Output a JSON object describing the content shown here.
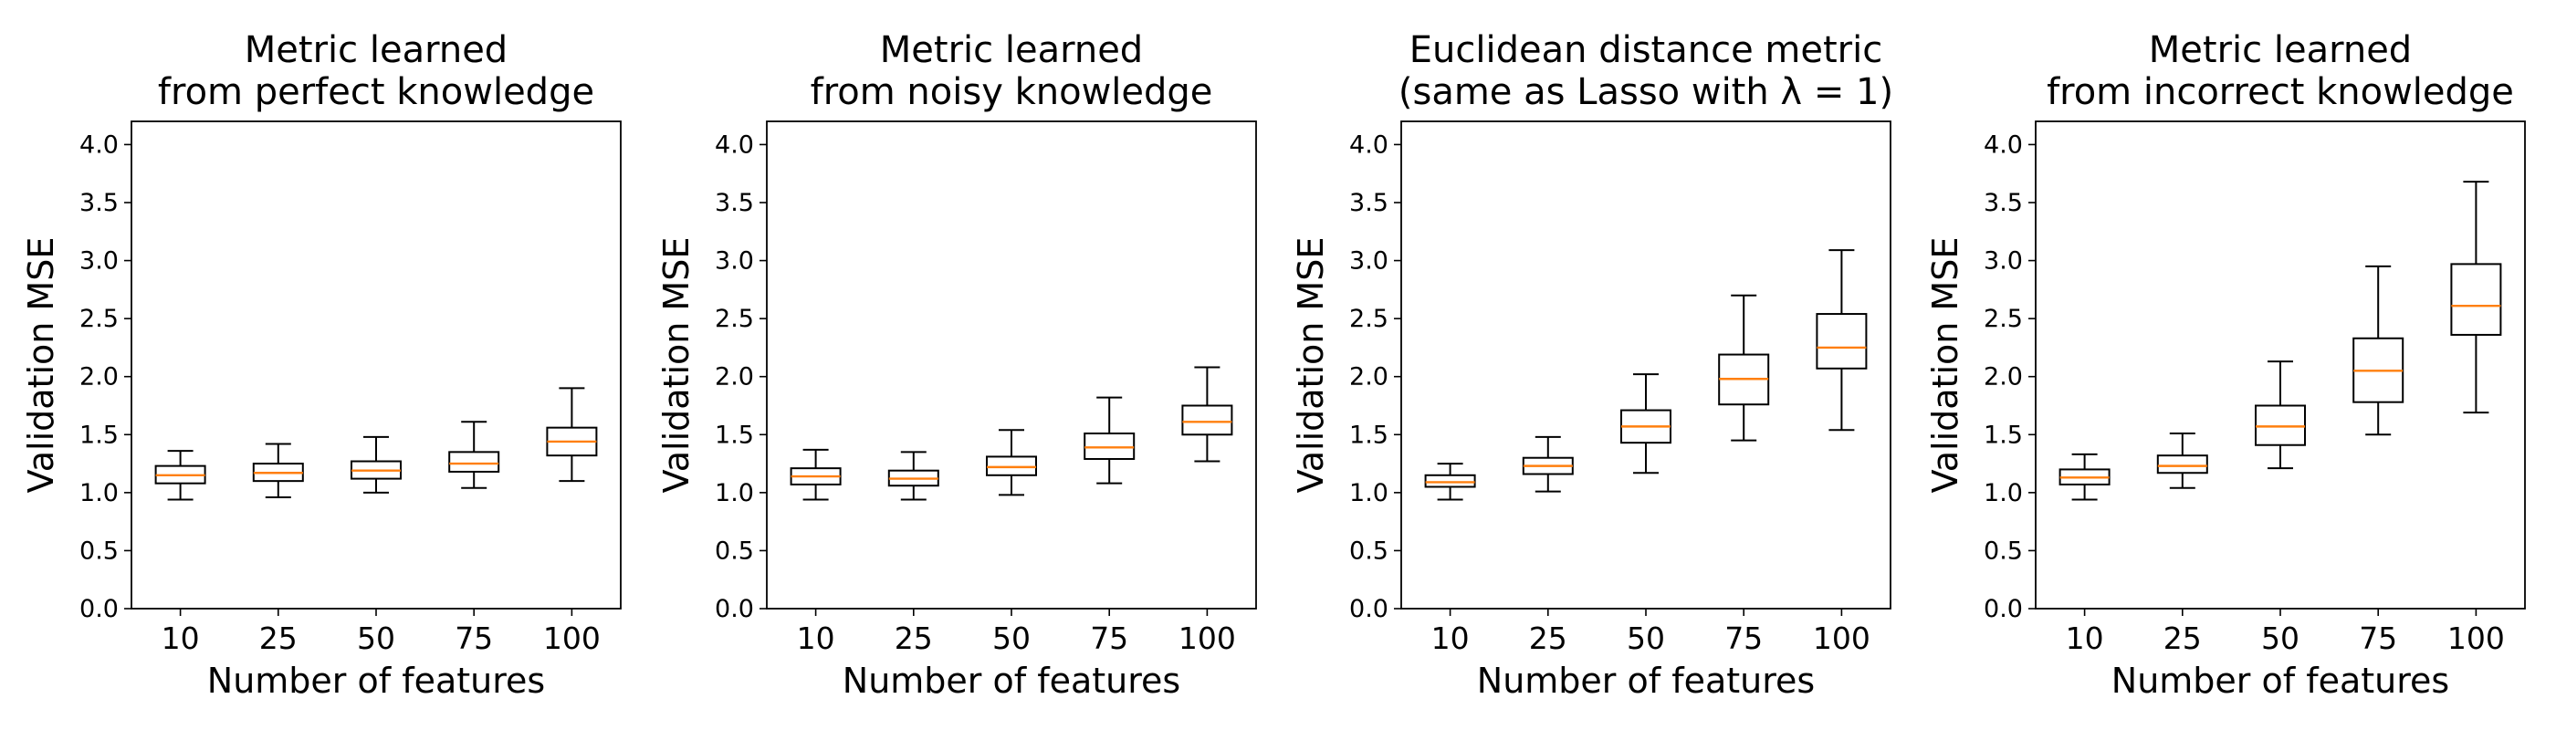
{
  "figure": {
    "style": {
      "box_edge_color": "#000000",
      "median_color": "#ff7f0e",
      "background": "#ffffff"
    }
  },
  "chart_data": [
    {
      "type": "boxplot",
      "title_lines": [
        "Metric learned",
        "from perfect knowledge"
      ],
      "xlabel": "Number of features",
      "ylabel": "Validation MSE",
      "categories": [
        "10",
        "25",
        "50",
        "75",
        "100"
      ],
      "ylim": [
        0,
        4.2
      ],
      "yticks": [
        0.0,
        0.5,
        1.0,
        1.5,
        2.0,
        2.5,
        3.0,
        3.5,
        4.0
      ],
      "ytick_labels": [
        "0.0",
        "0.5",
        "1.0",
        "1.5",
        "2.0",
        "2.5",
        "3.0",
        "3.5",
        "4.0"
      ],
      "grid": false,
      "boxes": [
        {
          "whislo": 0.94,
          "q1": 1.08,
          "med": 1.15,
          "q3": 1.23,
          "whishi": 1.36
        },
        {
          "whislo": 0.96,
          "q1": 1.1,
          "med": 1.17,
          "q3": 1.25,
          "whishi": 1.42
        },
        {
          "whislo": 1.0,
          "q1": 1.12,
          "med": 1.19,
          "q3": 1.27,
          "whishi": 1.48
        },
        {
          "whislo": 1.04,
          "q1": 1.18,
          "med": 1.25,
          "q3": 1.35,
          "whishi": 1.61
        },
        {
          "whislo": 1.1,
          "q1": 1.32,
          "med": 1.44,
          "q3": 1.56,
          "whishi": 1.9
        }
      ]
    },
    {
      "type": "boxplot",
      "title_lines": [
        "Metric learned",
        "from noisy knowledge"
      ],
      "xlabel": "Number of features",
      "ylabel": "Validation MSE",
      "categories": [
        "10",
        "25",
        "50",
        "75",
        "100"
      ],
      "ylim": [
        0,
        4.2
      ],
      "yticks": [
        0.0,
        0.5,
        1.0,
        1.5,
        2.0,
        2.5,
        3.0,
        3.5,
        4.0
      ],
      "ytick_labels": [
        "0.0",
        "0.5",
        "1.0",
        "1.5",
        "2.0",
        "2.5",
        "3.0",
        "3.5",
        "4.0"
      ],
      "grid": false,
      "boxes": [
        {
          "whislo": 0.94,
          "q1": 1.07,
          "med": 1.14,
          "q3": 1.21,
          "whishi": 1.37
        },
        {
          "whislo": 0.94,
          "q1": 1.06,
          "med": 1.12,
          "q3": 1.19,
          "whishi": 1.35
        },
        {
          "whislo": 0.98,
          "q1": 1.15,
          "med": 1.22,
          "q3": 1.31,
          "whishi": 1.54
        },
        {
          "whislo": 1.08,
          "q1": 1.29,
          "med": 1.39,
          "q3": 1.51,
          "whishi": 1.82
        },
        {
          "whislo": 1.27,
          "q1": 1.5,
          "med": 1.61,
          "q3": 1.75,
          "whishi": 2.08
        }
      ]
    },
    {
      "type": "boxplot",
      "title_lines": [
        "Euclidean distance metric",
        "(same as Lasso with λ = 1)"
      ],
      "xlabel": "Number of features",
      "ylabel": "Validation MSE",
      "categories": [
        "10",
        "25",
        "50",
        "75",
        "100"
      ],
      "ylim": [
        0,
        4.2
      ],
      "yticks": [
        0.0,
        0.5,
        1.0,
        1.5,
        2.0,
        2.5,
        3.0,
        3.5,
        4.0
      ],
      "ytick_labels": [
        "0.0",
        "0.5",
        "1.0",
        "1.5",
        "2.0",
        "2.5",
        "3.0",
        "3.5",
        "4.0"
      ],
      "grid": false,
      "boxes": [
        {
          "whislo": 0.94,
          "q1": 1.05,
          "med": 1.09,
          "q3": 1.15,
          "whishi": 1.25
        },
        {
          "whislo": 1.01,
          "q1": 1.16,
          "med": 1.23,
          "q3": 1.3,
          "whishi": 1.48
        },
        {
          "whislo": 1.17,
          "q1": 1.43,
          "med": 1.57,
          "q3": 1.71,
          "whishi": 2.02
        },
        {
          "whislo": 1.45,
          "q1": 1.76,
          "med": 1.98,
          "q3": 2.19,
          "whishi": 2.7
        },
        {
          "whislo": 1.54,
          "q1": 2.07,
          "med": 2.25,
          "q3": 2.54,
          "whishi": 3.09
        }
      ]
    },
    {
      "type": "boxplot",
      "title_lines": [
        "Metric learned",
        "from incorrect knowledge"
      ],
      "xlabel": "Number of features",
      "ylabel": "Validation MSE",
      "categories": [
        "10",
        "25",
        "50",
        "75",
        "100"
      ],
      "ylim": [
        0,
        4.2
      ],
      "yticks": [
        0.0,
        0.5,
        1.0,
        1.5,
        2.0,
        2.5,
        3.0,
        3.5,
        4.0
      ],
      "ytick_labels": [
        "0.0",
        "0.5",
        "1.0",
        "1.5",
        "2.0",
        "2.5",
        "3.0",
        "3.5",
        "4.0"
      ],
      "grid": false,
      "boxes": [
        {
          "whislo": 0.94,
          "q1": 1.07,
          "med": 1.13,
          "q3": 1.2,
          "whishi": 1.33
        },
        {
          "whislo": 1.04,
          "q1": 1.17,
          "med": 1.23,
          "q3": 1.32,
          "whishi": 1.51
        },
        {
          "whislo": 1.21,
          "q1": 1.41,
          "med": 1.57,
          "q3": 1.75,
          "whishi": 2.13
        },
        {
          "whislo": 1.5,
          "q1": 1.78,
          "med": 2.05,
          "q3": 2.33,
          "whishi": 2.95
        },
        {
          "whislo": 1.69,
          "q1": 2.36,
          "med": 2.61,
          "q3": 2.97,
          "whishi": 3.68
        }
      ]
    }
  ]
}
